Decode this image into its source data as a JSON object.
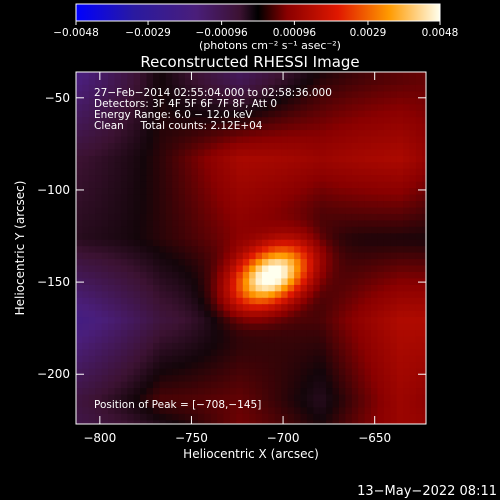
{
  "chart_data": {
    "type": "heatmap",
    "title": "Reconstructed RHESSI Image",
    "xlabel": "Heliocentric X (arcsec)",
    "ylabel": "Heliocentric Y (arcsec)",
    "xlim": [
      -813,
      -622
    ],
    "ylim": [
      -227,
      -36
    ],
    "x_ticks": [
      -800,
      -750,
      -700,
      -650
    ],
    "x_tick_labels": [
      "−800",
      "−750",
      "−700",
      "−650"
    ],
    "y_ticks": [
      -50,
      -100,
      -150,
      -200
    ],
    "y_tick_labels": [
      "−50",
      "−100",
      "−150",
      "−200"
    ],
    "colorbar": {
      "range": [
        -0.0048,
        0.0048
      ],
      "ticks": [
        -0.0048,
        -0.0029,
        -0.00096,
        0.00096,
        0.0029,
        0.0048
      ],
      "tick_labels": [
        "−0.0048",
        "−0.0029",
        "−0.00096",
        "0.00096",
        "0.0029",
        "0.0048"
      ],
      "unit_label": "(photons cm⁻² s⁻¹ asec⁻²)"
    },
    "info_lines": [
      "27−Feb−2014 02:55:04.000 to 02:58:36.000",
      "Detectors: 3F 4F 5F 6F 7F 8F, Att 0",
      "Energy Range: 6.0 − 12.0 keV",
      "Clean     Total counts: 2.12E+04"
    ],
    "peak_label": "Position of Peak = [−708,−145]",
    "peak": {
      "x": -708,
      "y": -145
    },
    "source": {
      "x": -708,
      "y": -145,
      "peak_value": 0.0048
    }
  },
  "footer": {
    "date": "13−May−2022 08:11"
  }
}
